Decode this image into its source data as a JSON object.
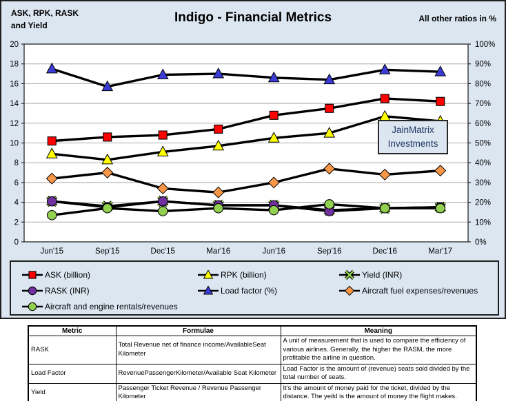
{
  "header": {
    "left_label_line1": "ASK, RPK, RASK",
    "left_label_line2": "and Yield",
    "title": "Indigo - Financial Metrics",
    "right_label": "All other ratios in %"
  },
  "annotation": {
    "line1": "JainMatrix",
    "line2": "Investments"
  },
  "chart_data": {
    "type": "line",
    "title": "Indigo - Financial Metrics",
    "categories": [
      "Jun'15",
      "Sep'15",
      "Dec'15",
      "Mar'16",
      "Jun'16",
      "Sep'16",
      "Dec'16",
      "Mar'17"
    ],
    "left_axis": {
      "label": "ASK, RPK, RASK and Yield",
      "min": 0,
      "max": 20,
      "ticks": [
        "0",
        "2",
        "4",
        "6",
        "8",
        "10",
        "12",
        "14",
        "16",
        "18",
        "20"
      ]
    },
    "right_axis": {
      "label": "All other ratios in %",
      "min": 0,
      "max": 100,
      "ticks": [
        "0%",
        "10%",
        "20%",
        "30%",
        "40%",
        "50%",
        "60%",
        "70%",
        "80%",
        "90%",
        "100%"
      ]
    },
    "grid": true,
    "legend_position": "bottom",
    "line_color": "#000000",
    "series": [
      {
        "name": "ASK (billion)",
        "axis": "left",
        "marker": "square",
        "color": "#ff0000",
        "values": [
          10.2,
          10.6,
          10.8,
          11.4,
          12.8,
          13.5,
          14.5,
          14.2
        ]
      },
      {
        "name": "RPK (billion)",
        "axis": "left",
        "marker": "triangle",
        "color": "#ffff00",
        "values": [
          8.9,
          8.3,
          9.1,
          9.7,
          10.5,
          11.0,
          12.7,
          12.2
        ]
      },
      {
        "name": "Yield (INR)",
        "axis": "left",
        "marker": "x",
        "color": "#92d050",
        "values": [
          4.1,
          3.6,
          4.1,
          3.7,
          3.7,
          3.2,
          3.4,
          3.5
        ]
      },
      {
        "name": "RASK (INR)",
        "axis": "left",
        "marker": "circle",
        "color": "#7030a0",
        "values": [
          4.1,
          3.5,
          4.1,
          3.7,
          3.7,
          3.1,
          3.4,
          3.5
        ]
      },
      {
        "name": "Load factor (%)",
        "axis": "right",
        "marker": "triangle",
        "color": "#3b3bd6",
        "values": [
          87.5,
          78.5,
          84.5,
          85,
          83,
          82,
          87,
          86
        ]
      },
      {
        "name": "Aircraft fuel expenses/revenues",
        "axis": "right",
        "marker": "diamond",
        "color": "#f79646",
        "values": [
          32,
          35,
          27,
          25,
          30,
          37,
          34,
          36
        ]
      },
      {
        "name": "Aircraft and engine rentals/revenues",
        "axis": "right",
        "marker": "circle",
        "color": "#92d050",
        "values": [
          13.5,
          17,
          15.5,
          17,
          16,
          19,
          17,
          17
        ]
      }
    ]
  },
  "table": {
    "headers": [
      "Metric",
      "Formulae",
      "Meaning"
    ],
    "rows": [
      [
        "RASK",
        "Total Revenue net of finance income/AvailableSeat Kilometer",
        "A unit of measurement that is used to compare the efficiency of various airlines. Generally, the higher the RASM, the more profitable the airline in question."
      ],
      [
        "Load Factor",
        "RevenuePassengerKilometer/Available Seat Kilometer",
        "Load Factor is the amount of (revenue) seats sold divided by the total number of seats."
      ],
      [
        "Yield",
        "Passenger Ticket Revenue / Revenue Passenger Kilometer",
        "It's the amount of money paid for the ticket, divided by the distance. The yeild is the amount of money the flight makes."
      ]
    ]
  },
  "colors": {
    "chart_background": "#dce6f1",
    "plot_background": "#ffffff",
    "gridline": "#a8a8a8",
    "frame": "#262626",
    "series_line": "#000000",
    "annotation_text": "#1f3864"
  }
}
